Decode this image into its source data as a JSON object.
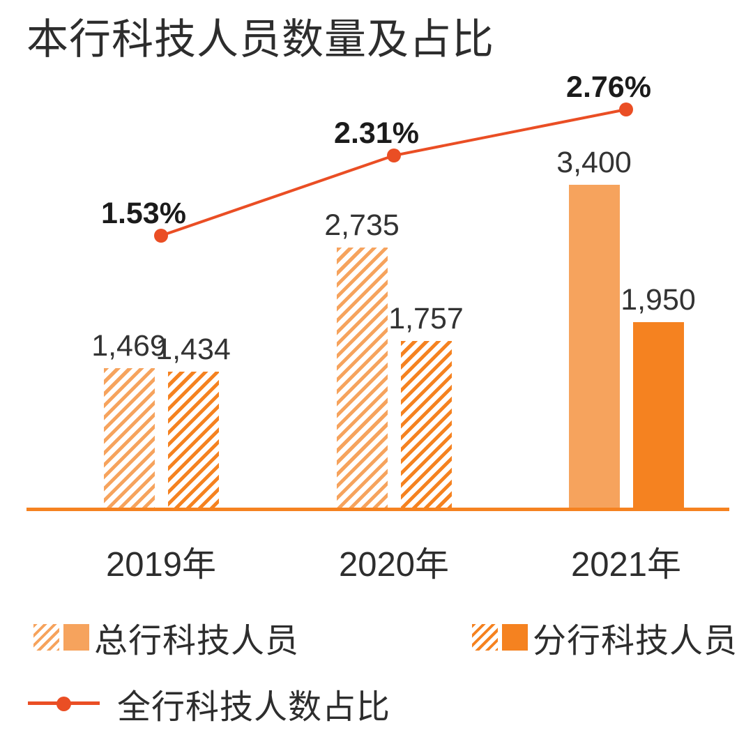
{
  "title": "本行科技人员数量及占比",
  "colors": {
    "bar_head_office": "#F6A35D",
    "bar_branch": "#F58220",
    "line": "#EA4E24",
    "axis": "#F58220",
    "text": "#2B2B2B"
  },
  "chart_data": {
    "type": "combo",
    "categories": [
      "2019年",
      "2020年",
      "2021年"
    ],
    "series": [
      {
        "name": "总行科技人员",
        "type": "bar",
        "values": [
          1469,
          2735,
          3400
        ],
        "labels": [
          "1,469",
          "2,735",
          "3,400"
        ]
      },
      {
        "name": "分行科技人员",
        "type": "bar",
        "values": [
          1434,
          1757,
          1950
        ],
        "labels": [
          "1,434",
          "1,757",
          "1,950"
        ]
      },
      {
        "name": "全行科技人数占比",
        "type": "line",
        "unit": "%",
        "values": [
          1.53,
          2.31,
          2.76
        ],
        "labels": [
          "1.53%",
          "2.31%",
          "2.76%"
        ]
      }
    ],
    "bar_fill_style_by_category": [
      "hatch",
      "hatch",
      "solid"
    ],
    "grid": false,
    "y_axis_visible": false,
    "x_axis_line_visible": true,
    "legend_position": "bottom"
  },
  "legend": {
    "items": [
      {
        "label": "总行科技人员",
        "swatch": "hatch+solid",
        "color": "#F6A35D"
      },
      {
        "label": "分行科技人员",
        "swatch": "hatch+solid",
        "color": "#F58220"
      },
      {
        "label": "全行科技人数占比",
        "swatch": "line-dot",
        "color": "#EA4E24"
      }
    ]
  }
}
